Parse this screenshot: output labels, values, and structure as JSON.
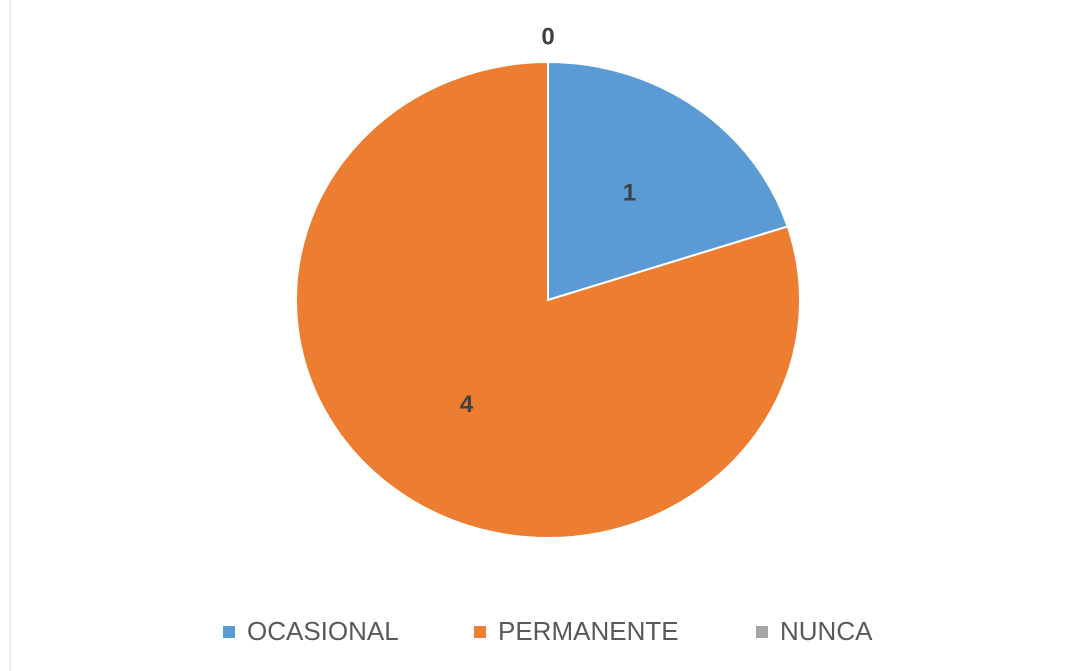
{
  "chart_data": {
    "type": "pie",
    "categories": [
      "OCASIONAL",
      "PERMANENTE",
      "NUNCA"
    ],
    "values": [
      1,
      4,
      0
    ],
    "colors": [
      "#5b9bd5",
      "#ed7d31",
      "#a5a5a5"
    ],
    "legend": "bottom"
  }
}
